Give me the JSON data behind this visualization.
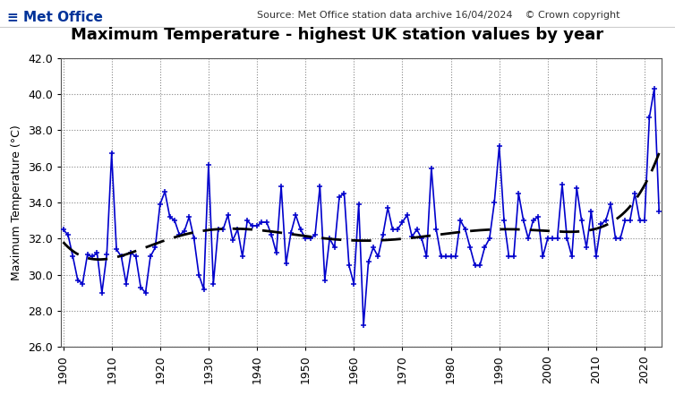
{
  "title": "Maximum Temperature - highest UK station values by year",
  "source_text": "Source: Met Office station data archive 16/04/2024    © Crown copyright",
  "ylabel": "Maximum Temperature (°C)",
  "ylim": [
    26.0,
    42.0
  ],
  "yticks": [
    26.0,
    28.0,
    30.0,
    32.0,
    34.0,
    36.0,
    38.0,
    40.0,
    42.0
  ],
  "xlim": [
    1899.5,
    2023.5
  ],
  "xticks": [
    1900,
    1910,
    1920,
    1930,
    1940,
    1950,
    1960,
    1970,
    1980,
    1990,
    2000,
    2010,
    2020
  ],
  "line_color": "#0000cc",
  "trend_color": "#000000",
  "bg_color": "#ffffff",
  "grid_color": "#888888",
  "years": [
    1900,
    1901,
    1902,
    1903,
    1904,
    1905,
    1906,
    1907,
    1908,
    1909,
    1910,
    1911,
    1912,
    1913,
    1914,
    1915,
    1916,
    1917,
    1918,
    1919,
    1920,
    1921,
    1922,
    1923,
    1924,
    1925,
    1926,
    1927,
    1928,
    1929,
    1930,
    1931,
    1932,
    1933,
    1934,
    1935,
    1936,
    1937,
    1938,
    1939,
    1940,
    1941,
    1942,
    1943,
    1944,
    1945,
    1946,
    1947,
    1948,
    1949,
    1950,
    1951,
    1952,
    1953,
    1954,
    1955,
    1956,
    1957,
    1958,
    1959,
    1960,
    1961,
    1962,
    1963,
    1964,
    1965,
    1966,
    1967,
    1968,
    1969,
    1970,
    1971,
    1972,
    1973,
    1974,
    1975,
    1976,
    1977,
    1978,
    1979,
    1980,
    1981,
    1982,
    1983,
    1984,
    1985,
    1986,
    1987,
    1988,
    1989,
    1990,
    1991,
    1992,
    1993,
    1994,
    1995,
    1996,
    1997,
    1998,
    1999,
    2000,
    2001,
    2002,
    2003,
    2004,
    2005,
    2006,
    2007,
    2008,
    2009,
    2010,
    2011,
    2012,
    2013,
    2014,
    2015,
    2016,
    2017,
    2018,
    2019,
    2020,
    2021,
    2022,
    2023
  ],
  "values": [
    32.5,
    32.2,
    31.0,
    29.7,
    29.5,
    31.1,
    31.0,
    31.2,
    29.0,
    31.1,
    36.7,
    31.4,
    31.0,
    29.5,
    31.2,
    31.0,
    29.3,
    29.0,
    31.0,
    31.5,
    33.9,
    34.6,
    33.2,
    33.0,
    32.2,
    32.4,
    33.2,
    32.0,
    30.0,
    29.2,
    36.1,
    29.5,
    32.5,
    32.5,
    33.3,
    31.9,
    32.5,
    31.0,
    33.0,
    32.7,
    32.7,
    32.9,
    32.9,
    32.2,
    31.2,
    34.9,
    30.6,
    32.3,
    33.3,
    32.5,
    32.0,
    32.0,
    32.2,
    34.9,
    29.7,
    32.0,
    31.5,
    34.3,
    34.5,
    30.5,
    29.5,
    33.9,
    27.2,
    30.7,
    31.5,
    31.0,
    32.2,
    33.7,
    32.5,
    32.5,
    32.9,
    33.3,
    32.1,
    32.5,
    32.0,
    31.0,
    35.9,
    32.5,
    31.0,
    31.0,
    31.0,
    31.0,
    33.0,
    32.5,
    31.5,
    30.5,
    30.5,
    31.5,
    32.0,
    34.0,
    37.1,
    33.0,
    31.0,
    31.0,
    34.5,
    33.0,
    32.0,
    33.0,
    33.2,
    31.0,
    32.0,
    32.0,
    32.0,
    35.0,
    32.0,
    31.0,
    34.8,
    33.0,
    31.5,
    33.5,
    31.0,
    32.8,
    33.0,
    33.9,
    32.0,
    32.0,
    33.0,
    33.0,
    34.5,
    33.0,
    33.0,
    38.7,
    40.3,
    33.5
  ],
  "metoffice_text": "≡ Met Office",
  "metoffice_color": "#003399",
  "title_fontsize": 13,
  "axis_fontsize": 9,
  "tick_fontsize": 9
}
